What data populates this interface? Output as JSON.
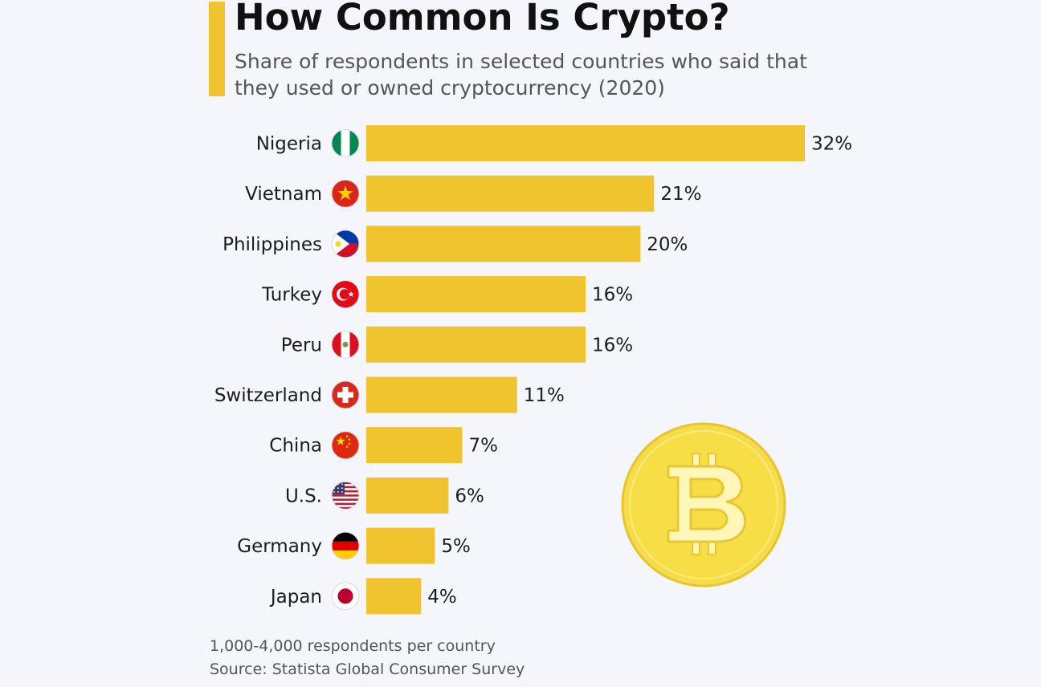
{
  "header": {
    "title": "How Common Is Crypto?",
    "subtitle": "Share of respondents in selected countries who said that they used or owned cryptocurrency (2020)"
  },
  "chart_data": {
    "type": "bar",
    "orientation": "horizontal",
    "title": "How Common Is Crypto?",
    "subtitle": "Share of respondents in selected countries who said that they used or owned cryptocurrency (2020)",
    "categories": [
      "Nigeria",
      "Vietnam",
      "Philippines",
      "Turkey",
      "Peru",
      "Switzerland",
      "China",
      "U.S.",
      "Germany",
      "Japan"
    ],
    "values": [
      32,
      21,
      20,
      16,
      16,
      11,
      7,
      6,
      5,
      4
    ],
    "value_labels": [
      "32%",
      "21%",
      "20%",
      "16%",
      "16%",
      "11%",
      "7%",
      "6%",
      "5%",
      "4%"
    ],
    "unit": "%",
    "xlim": [
      0,
      32
    ],
    "grid": false,
    "legend": "none",
    "flags": [
      "nigeria-flag-icon",
      "vietnam-flag-icon",
      "philippines-flag-icon",
      "turkey-flag-icon",
      "peru-flag-icon",
      "switzerland-flag-icon",
      "china-flag-icon",
      "us-flag-icon",
      "germany-flag-icon",
      "japan-flag-icon"
    ]
  },
  "decoration": {
    "coin_icon": "bitcoin-coin-icon"
  },
  "colors": {
    "bar": "#efc42e",
    "accent": "#efc42e",
    "title": "#111111",
    "subtitle": "#555555",
    "background": "#f4f6fb",
    "coin_outer": "#f3d43b",
    "coin_inner": "#f7de46"
  },
  "footer": {
    "note": "1,000-4,000 respondents per country",
    "source": "Source: Statista Global Consumer Survey"
  }
}
